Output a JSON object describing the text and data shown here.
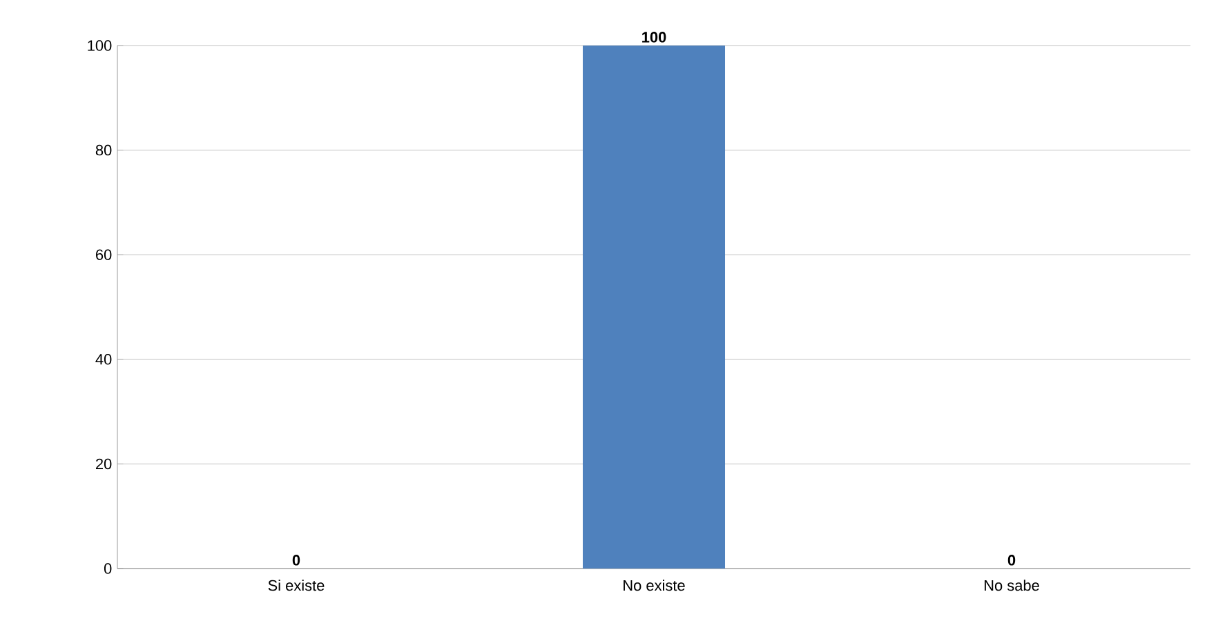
{
  "chart_data": {
    "type": "bar",
    "categories": [
      "Si existe",
      "No existe",
      "No sabe"
    ],
    "values": [
      0,
      100,
      0
    ],
    "color": "#4f81bd",
    "ylim": [
      0,
      100
    ],
    "yticks": [
      0,
      20,
      40,
      60,
      80,
      100
    ],
    "grid": "y",
    "data_labels": true
  }
}
